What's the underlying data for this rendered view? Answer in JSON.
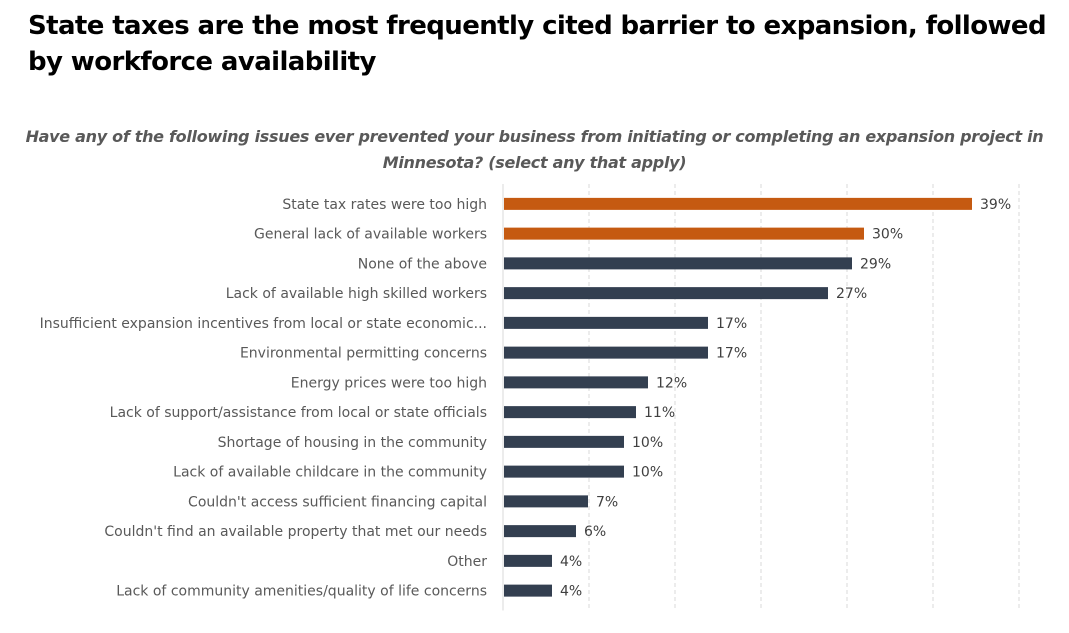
{
  "chart_data": {
    "type": "bar",
    "orientation": "horizontal",
    "title": "State taxes are the most frequently cited barrier to expansion, followed by workforce availability",
    "subtitle": "Have any of the following issues ever prevented your business from initiating or completing an expansion project in Minnesota? (select any that apply)",
    "xlabel": "",
    "ylabel": "",
    "categories": [
      "State tax rates were too high",
      "General lack of available workers",
      "None of the above",
      "Lack of available high skilled workers",
      "Insufficient expansion incentives from local or state economic...",
      "Environmental permitting concerns",
      "Energy prices were too high",
      "Lack of support/assistance from local or state officials",
      "Shortage of housing in the community",
      "Lack of available childcare in the community",
      "Couldn't access sufficient financing capital",
      "Couldn't find an available property that met our needs",
      "Other",
      "Lack of community amenities/quality of life concerns"
    ],
    "values": [
      39,
      30,
      29,
      27,
      17,
      17,
      12,
      11,
      10,
      10,
      7,
      6,
      4,
      4
    ],
    "value_labels": [
      "39%",
      "30%",
      "29%",
      "27%",
      "17%",
      "17%",
      "12%",
      "11%",
      "10%",
      "10%",
      "7%",
      "6%",
      "4%",
      "4%"
    ],
    "highlighted": [
      true,
      true,
      false,
      false,
      false,
      false,
      false,
      false,
      false,
      false,
      false,
      false,
      false,
      false
    ],
    "xlim": [
      0,
      43
    ],
    "gridline_count": 6,
    "grid": true,
    "legend": "none",
    "colors": {
      "highlight": "#C55A11",
      "default": "#333F50",
      "grid": "#D9D9D9",
      "axis": "#D9D9D9"
    }
  }
}
